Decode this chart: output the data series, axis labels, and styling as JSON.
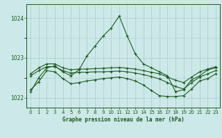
{
  "background_color": "#cce8e8",
  "grid_color": "#aacccc",
  "line_color": "#1a5c1a",
  "title": "Graphe pression niveau de la mer (hPa)",
  "ylim": [
    1021.75,
    1024.35
  ],
  "yticks": [
    1022,
    1023,
    1024
  ],
  "xlim": [
    -0.5,
    23.5
  ],
  "xticks": [
    0,
    1,
    2,
    3,
    4,
    5,
    6,
    7,
    8,
    9,
    10,
    11,
    12,
    13,
    14,
    15,
    16,
    17,
    18,
    19,
    20,
    21,
    22,
    23
  ],
  "series": [
    {
      "x": [
        0,
        1,
        2,
        3,
        4,
        5,
        6,
        7,
        8,
        9,
        10,
        11,
        12,
        13,
        14,
        15,
        16,
        17,
        18,
        19,
        20,
        21,
        22,
        23
      ],
      "y": [
        1022.15,
        1022.5,
        1022.75,
        1022.8,
        1022.65,
        1022.55,
        1022.7,
        1023.05,
        1023.3,
        1023.55,
        1023.75,
        1024.05,
        1023.55,
        1023.1,
        1022.85,
        1022.75,
        1022.65,
        1022.55,
        1022.15,
        1022.2,
        1022.45,
        1022.55,
        1022.7,
        1022.75
      ]
    },
    {
      "x": [
        0,
        1,
        2,
        3,
        4,
        5,
        6,
        7,
        8,
        9,
        10,
        11,
        12,
        13,
        14,
        15,
        16,
        17,
        18,
        19,
        20,
        21,
        22,
        23
      ],
      "y": [
        1022.6,
        1022.75,
        1022.85,
        1022.85,
        1022.75,
        1022.7,
        1022.72,
        1022.72,
        1022.73,
        1022.74,
        1022.75,
        1022.76,
        1022.74,
        1022.72,
        1022.68,
        1022.64,
        1022.6,
        1022.52,
        1022.44,
        1022.38,
        1022.52,
        1022.65,
        1022.72,
        1022.78
      ]
    },
    {
      "x": [
        0,
        1,
        2,
        3,
        4,
        5,
        6,
        7,
        8,
        9,
        10,
        11,
        12,
        13,
        14,
        15,
        16,
        17,
        18,
        19,
        20,
        21,
        22,
        23
      ],
      "y": [
        1022.55,
        1022.68,
        1022.78,
        1022.78,
        1022.68,
        1022.62,
        1022.64,
        1022.64,
        1022.65,
        1022.65,
        1022.66,
        1022.67,
        1022.65,
        1022.62,
        1022.58,
        1022.53,
        1022.47,
        1022.38,
        1022.28,
        1022.22,
        1022.38,
        1022.52,
        1022.6,
        1022.68
      ]
    },
    {
      "x": [
        0,
        1,
        2,
        3,
        4,
        5,
        6,
        7,
        8,
        9,
        10,
        11,
        12,
        13,
        14,
        15,
        16,
        17,
        18,
        19,
        20,
        21,
        22,
        23
      ],
      "y": [
        1022.2,
        1022.4,
        1022.68,
        1022.65,
        1022.48,
        1022.35,
        1022.38,
        1022.42,
        1022.45,
        1022.48,
        1022.5,
        1022.52,
        1022.48,
        1022.42,
        1022.32,
        1022.18,
        1022.05,
        1022.03,
        1022.03,
        1022.05,
        1022.22,
        1022.42,
        1022.48,
        1022.6
      ]
    }
  ]
}
